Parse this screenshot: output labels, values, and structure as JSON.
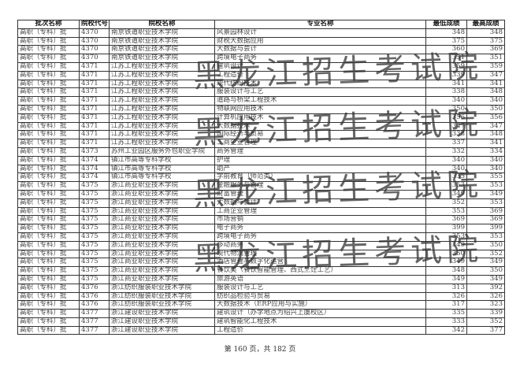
{
  "headers": [
    "批次名称",
    "院校代号",
    "院校名称",
    "专业名称",
    "最低成绩",
    "最高成绩"
  ],
  "rows": [
    [
      "高职（专科）批",
      "4370",
      "南京铁道职业技术学院",
      "风景园林设计",
      "348",
      "348"
    ],
    [
      "高职（专科）批",
      "4370",
      "南京铁道职业技术学院",
      "财税大数据应用",
      "375",
      "375"
    ],
    [
      "高职（专科）批",
      "4370",
      "南京铁道职业技术学院",
      "大数据与会计",
      "360",
      "369"
    ],
    [
      "高职（专科）批",
      "4370",
      "南京铁道职业技术学院",
      "跨境电子商务",
      "351",
      "351"
    ],
    [
      "高职（专科）批",
      "4371",
      "江苏工程职业技术学院",
      "建筑设计",
      "359",
      "359"
    ],
    [
      "高职（专科）批",
      "4371",
      "江苏工程职业技术学院",
      "工程造价",
      "339",
      "347"
    ],
    [
      "高职（专科）批",
      "4371",
      "江苏工程职业技术学院",
      "现代纺织技术",
      "341",
      "341"
    ],
    [
      "高职（专科）批",
      "4371",
      "江苏工程职业技术学院",
      "服装设计与工艺",
      "338",
      "348"
    ],
    [
      "高职（专科）批",
      "4371",
      "江苏工程职业技术学院",
      "道路与桥梁工程技术",
      "340",
      "340"
    ],
    [
      "高职（专科）批",
      "4371",
      "江苏工程职业技术学院",
      "物联网应用技术",
      "350",
      "350"
    ],
    [
      "高职（专科）批",
      "4371",
      "江苏工程职业技术学院",
      "计算机应用技术",
      "356",
      "356"
    ],
    [
      "高职（专科）批",
      "4371",
      "江苏工程职业技术学院",
      "大数据技术",
      "347",
      "347"
    ],
    [
      "高职（专科）批",
      "4371",
      "江苏工程职业技术学院",
      "国际经济与贸易",
      "338",
      "348"
    ],
    [
      "高职（专科）批",
      "4371",
      "江苏工程职业技术学院",
      "工商企业管理",
      "337",
      "341"
    ],
    [
      "高职（专科）批",
      "4373",
      "苏州工业园区服务外包职业学院",
      "商务管理",
      "332",
      "334"
    ],
    [
      "高职（专科）批",
      "4374",
      "镇江市高等专科学校",
      "护理",
      "340",
      "340"
    ],
    [
      "高职（专科）批",
      "4374",
      "镇江市高等专科学校",
      "助产",
      "340",
      "340"
    ],
    [
      "高职（专科）批",
      "4374",
      "镇江市高等专科学校",
      "学前教育（师范类）",
      "335",
      "355"
    ],
    [
      "高职（专科）批",
      "4375",
      "浙江商业职业技术学院",
      "金融服务与管理",
      "353",
      "353"
    ],
    [
      "高职（专科）批",
      "4375",
      "浙江商业职业技术学院",
      "财富管理",
      "349",
      "349"
    ],
    [
      "高职（专科）批",
      "4375",
      "浙江商业职业技术学院",
      "大数据与会计",
      "352",
      "353"
    ],
    [
      "高职（专科）批",
      "4375",
      "浙江商业职业技术学院",
      "工商企业管理",
      "353",
      "369"
    ],
    [
      "高职（专科）批",
      "4375",
      "浙江商业职业技术学院",
      "市场营销",
      "369",
      "369"
    ],
    [
      "高职（专科）批",
      "4375",
      "浙江商业职业技术学院",
      "电子商务",
      "399",
      "399"
    ],
    [
      "高职（专科）批",
      "4375",
      "浙江商业职业技术学院",
      "跨境电子商务",
      "353",
      "353"
    ],
    [
      "高职（专科）批",
      "4375",
      "浙江商业职业技术学院",
      "移动商务",
      "349",
      "350"
    ],
    [
      "高职（专科）批",
      "4375",
      "浙江商业职业技术学院",
      "现代物流管理",
      "350",
      "352"
    ],
    [
      "高职（专科）批",
      "4375",
      "浙江商业职业技术学院",
      "酒店管理与数字化运营",
      "349",
      "349"
    ],
    [
      "高职（专科）批",
      "4375",
      "浙江商业职业技术学院",
      "餐饮类（餐饮智能管理、西式烹饪工艺）",
      "348",
      "350"
    ],
    [
      "高职（专科）批",
      "4375",
      "浙江商业职业技术学院",
      "旅游英语",
      "349",
      "349"
    ],
    [
      "高职（专科）批",
      "4376",
      "浙江纺织服装职业技术学院",
      "服装设计与工艺",
      "313",
      "392"
    ],
    [
      "高职（专科）批",
      "4376",
      "浙江纺织服装职业技术学院",
      "纺织品检验与贸易",
      "326",
      "326"
    ],
    [
      "高职（专科）批",
      "4376",
      "浙江纺织服装职业技术学院",
      "大数据技术（ERP应用与实施）",
      "317",
      "323"
    ],
    [
      "高职（专科）批",
      "4377",
      "浙江建设职业技术学院",
      "建筑设计（办学地点为绍兴上虞校区）",
      "335",
      "339"
    ],
    [
      "高职（专科）批",
      "4377",
      "浙江建设职业技术学院",
      "建筑智能化工程技术",
      "333",
      "352"
    ],
    [
      "高职（专科）批",
      "4377",
      "浙江建设职业技术学院",
      "工程造价",
      "342",
      "377"
    ]
  ],
  "watermark": "黑龙江招生考试院",
  "footer": "第 160 页，共 182 页"
}
